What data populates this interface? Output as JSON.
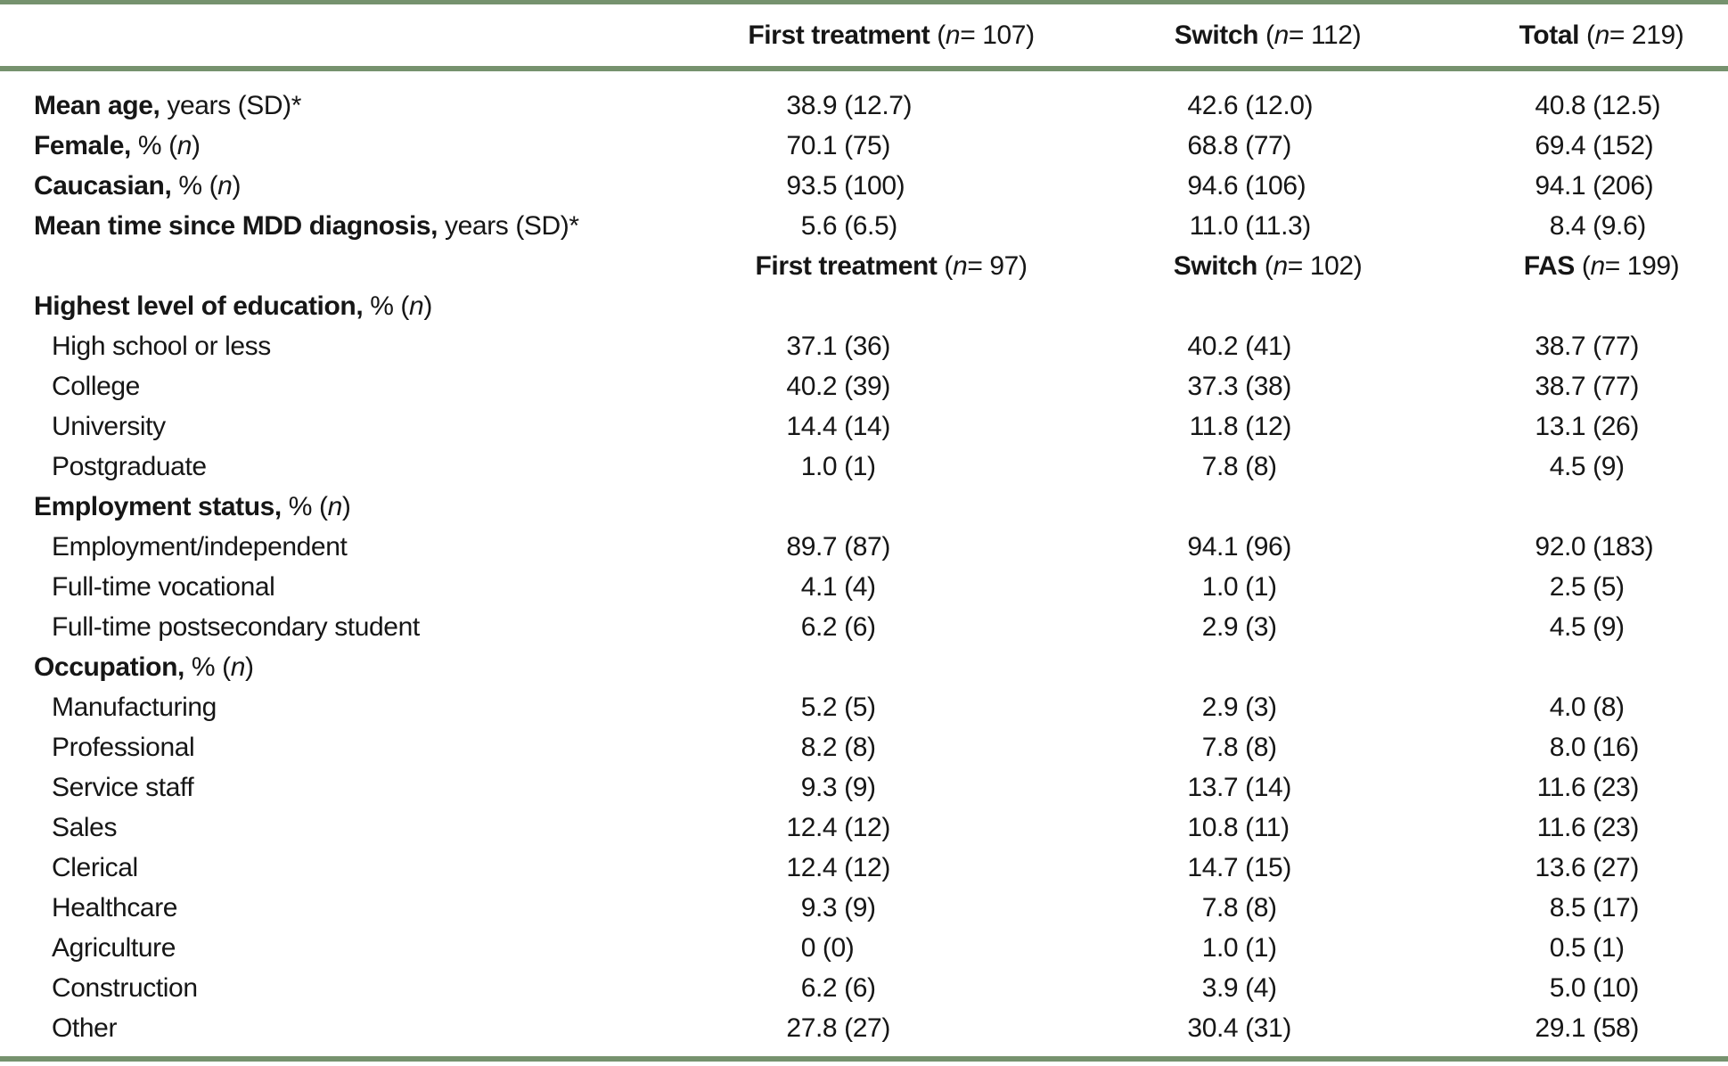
{
  "accent_color": "#76926e",
  "text_color": "#161616",
  "table": {
    "header": {
      "columns": [
        {
          "bold": "First treatment",
          "rest": "(n = 107)"
        },
        {
          "bold": "Switch",
          "rest": "(n = 112)"
        },
        {
          "bold": "Total",
          "rest": "(n = 219)"
        }
      ]
    },
    "rows": [
      {
        "type": "data",
        "bold": "Mean age,",
        "rest": "years (SD)*",
        "indent": false,
        "values": [
          "38.9 (12.7)",
          "42.6 (12.0)",
          "40.8 (12.5)"
        ]
      },
      {
        "type": "data",
        "bold": "Female,",
        "rest": "% (n)",
        "indent": false,
        "values": [
          "70.1 (75)",
          "68.8 (77)",
          "69.4 (152)"
        ]
      },
      {
        "type": "data",
        "bold": "Caucasian,",
        "rest": "% (n)",
        "indent": false,
        "values": [
          "93.5 (100)",
          "94.6 (106)",
          "94.1 (206)"
        ]
      },
      {
        "type": "data",
        "bold": "Mean time since MDD diagnosis,",
        "rest": "years (SD)*",
        "indent": false,
        "values": [
          "5.6 (6.5)",
          "11.0 (11.3)",
          "8.4 (9.6)"
        ]
      },
      {
        "type": "subheader",
        "cols": [
          {
            "bold": "First treatment",
            "rest": "(n = 97)"
          },
          {
            "bold": "Switch",
            "rest": "(n = 102)"
          },
          {
            "bold": "FAS",
            "rest": "(n = 199)"
          }
        ]
      },
      {
        "type": "section",
        "bold": "Highest level of education,",
        "rest": "% (n)"
      },
      {
        "type": "data",
        "label": "High school or less",
        "indent": true,
        "values": [
          "37.1 (36)",
          "40.2 (41)",
          "38.7 (77)"
        ]
      },
      {
        "type": "data",
        "label": "College",
        "indent": true,
        "values": [
          "40.2 (39)",
          "37.3 (38)",
          "38.7 (77)"
        ]
      },
      {
        "type": "data",
        "label": "University",
        "indent": true,
        "values": [
          "14.4 (14)",
          "11.8 (12)",
          "13.1 (26)"
        ]
      },
      {
        "type": "data",
        "label": "Postgraduate",
        "indent": true,
        "values": [
          "1.0 (1)",
          "7.8 (8)",
          "4.5 (9)"
        ]
      },
      {
        "type": "section",
        "bold": "Employment status,",
        "rest": "% (n)"
      },
      {
        "type": "data",
        "label": "Employment/independent",
        "indent": true,
        "values": [
          "89.7 (87)",
          "94.1 (96)",
          "92.0 (183)"
        ]
      },
      {
        "type": "data",
        "label": "Full-time vocational",
        "indent": true,
        "values": [
          "4.1 (4)",
          "1.0 (1)",
          "2.5 (5)"
        ]
      },
      {
        "type": "data",
        "label": "Full-time postsecondary student",
        "indent": true,
        "values": [
          "6.2 (6)",
          "2.9 (3)",
          "4.5 (9)"
        ]
      },
      {
        "type": "section",
        "bold": "Occupation,",
        "rest": "% (n)"
      },
      {
        "type": "data",
        "label": "Manufacturing",
        "indent": true,
        "values": [
          "5.2 (5)",
          "2.9 (3)",
          "4.0 (8)"
        ]
      },
      {
        "type": "data",
        "label": "Professional",
        "indent": true,
        "values": [
          "8.2 (8)",
          "7.8 (8)",
          "8.0 (16)"
        ]
      },
      {
        "type": "data",
        "label": "Service staff",
        "indent": true,
        "values": [
          "9.3 (9)",
          "13.7 (14)",
          "11.6 (23)"
        ]
      },
      {
        "type": "data",
        "label": "Sales",
        "indent": true,
        "values": [
          "12.4 (12)",
          "10.8 (11)",
          "11.6 (23)"
        ]
      },
      {
        "type": "data",
        "label": "Clerical",
        "indent": true,
        "values": [
          "12.4 (12)",
          "14.7 (15)",
          "13.6 (27)"
        ]
      },
      {
        "type": "data",
        "label": "Healthcare",
        "indent": true,
        "values": [
          "9.3 (9)",
          "7.8 (8)",
          "8.5 (17)"
        ]
      },
      {
        "type": "data",
        "label": "Agriculture",
        "indent": true,
        "values": [
          "0 (0)",
          "1.0 (1)",
          "0.5 (1)"
        ]
      },
      {
        "type": "data",
        "label": "Construction",
        "indent": true,
        "values": [
          "6.2 (6)",
          "3.9 (4)",
          "5.0 (10)"
        ]
      },
      {
        "type": "data",
        "label": "Other",
        "indent": true,
        "values": [
          "27.8 (27)",
          "30.4 (31)",
          "29.1 (58)"
        ]
      }
    ]
  }
}
